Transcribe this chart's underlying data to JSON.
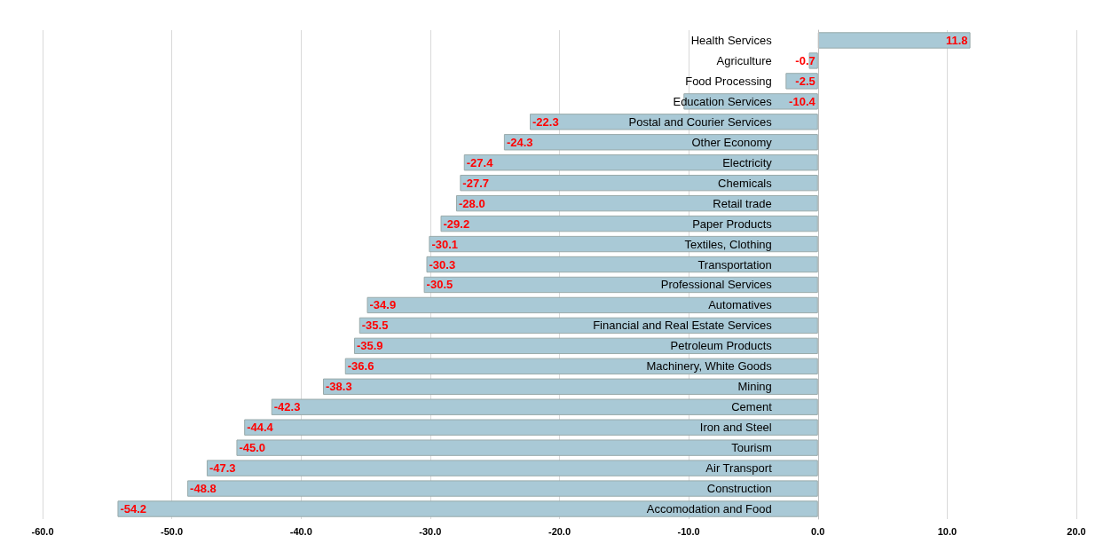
{
  "chart_data": {
    "type": "bar",
    "orientation": "horizontal",
    "categories": [
      "Health Services",
      "Agriculture",
      "Food Processing",
      "Education Services",
      "Postal and Courier Services",
      "Other Economy",
      "Electricity",
      "Chemicals",
      "Retail trade",
      "Paper Products",
      "Textiles, Clothing",
      "Transportation",
      "Professional Services",
      "Automatives",
      "Financial and Real Estate Services",
      "Petroleum Products",
      "Machinery, White Goods",
      "Mining",
      "Cement",
      "Iron and Steel",
      "Tourism",
      "Air Transport",
      "Construction",
      "Accomodation and Food"
    ],
    "values": [
      11.8,
      -0.7,
      -2.5,
      -10.4,
      -22.3,
      -24.3,
      -27.4,
      -27.7,
      -28.0,
      -29.2,
      -30.1,
      -30.3,
      -30.5,
      -34.9,
      -35.5,
      -35.9,
      -36.6,
      -38.3,
      -42.3,
      -44.4,
      -45.0,
      -47.3,
      -48.8,
      -54.2
    ],
    "value_labels": [
      "11.8",
      "-0.7",
      "-2.5",
      "-10.4",
      "-22.3",
      "-24.3",
      "-27.4",
      "-27.7",
      "-28.0",
      "-29.2",
      "-30.1",
      "-30.3",
      "-30.5",
      "-34.9",
      "-35.5",
      "-35.9",
      "-36.6",
      "-38.3",
      "-42.3",
      "-44.4",
      "-45.0",
      "-47.3",
      "-48.8",
      "-54.2"
    ],
    "color": "#a9c9d6",
    "xlim": [
      -60,
      20
    ],
    "xticks": [
      {
        "value": -60,
        "label": "-60.0"
      },
      {
        "value": -50,
        "label": "-50.0"
      },
      {
        "value": -40,
        "label": "-40.0"
      },
      {
        "value": -30,
        "label": "-30.0"
      },
      {
        "value": -20,
        "label": "-20.0"
      },
      {
        "value": -10,
        "label": "-10.0"
      },
      {
        "value": 0,
        "label": "0.0"
      },
      {
        "value": 10,
        "label": "10.0"
      },
      {
        "value": 20,
        "label": "20.0"
      }
    ],
    "grid": "x"
  }
}
